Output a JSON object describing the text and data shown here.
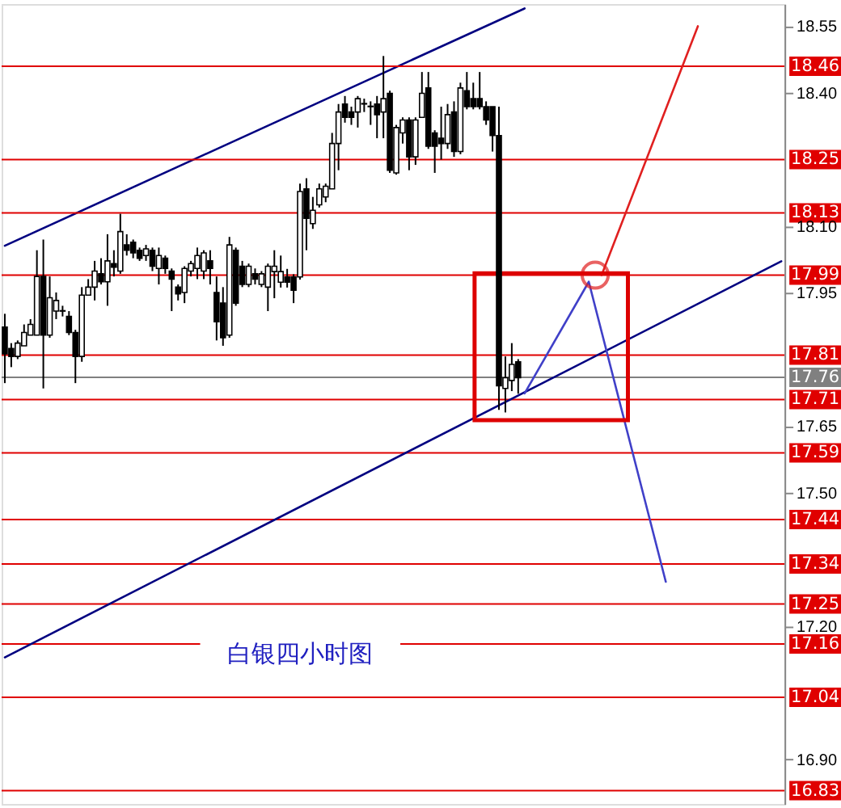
{
  "chart_data": {
    "type": "candlestick",
    "annotations": [
      "白银四小时图"
    ],
    "categories": [
      null,
      null,
      null,
      null,
      null,
      null,
      null,
      null,
      null,
      null,
      null,
      null,
      null,
      null,
      null,
      null,
      null,
      null,
      null,
      null,
      null,
      null,
      null,
      null,
      null,
      null,
      null,
      null,
      null,
      null,
      null,
      null,
      null,
      null,
      null,
      null,
      null,
      null,
      null,
      null,
      null,
      null,
      null,
      null,
      null,
      null,
      null,
      null,
      null,
      null,
      null,
      null,
      null,
      null,
      null,
      null,
      null,
      null,
      null,
      null,
      null,
      null,
      null,
      null,
      null,
      null,
      null,
      null,
      null,
      null,
      null,
      null,
      null,
      null,
      null,
      null,
      null,
      null,
      null,
      null,
      null,
      null,
      null,
      null,
      null,
      null,
      null,
      null,
      null,
      null,
      null,
      null,
      null,
      null,
      null,
      null,
      null,
      null,
      null,
      null,
      null,
      null,
      null,
      null,
      null,
      null,
      null,
      null,
      null,
      null,
      null,
      null,
      null,
      null,
      null,
      null,
      null,
      null,
      null,
      null,
      null,
      null
    ],
    "ohlc": [
      [
        17.873,
        17.903,
        17.747,
        17.813
      ],
      [
        17.825,
        17.837,
        17.783,
        17.807
      ],
      [
        17.807,
        17.843,
        17.801,
        17.837
      ],
      [
        17.831,
        17.879,
        17.831,
        17.861
      ],
      [
        17.855,
        17.891,
        17.855,
        17.879
      ],
      [
        17.855,
        18.046,
        17.855,
        17.987
      ],
      [
        17.987,
        18.07,
        17.735,
        17.855
      ],
      [
        17.855,
        17.987,
        17.849,
        17.939
      ],
      [
        17.909,
        17.951,
        17.891,
        17.933
      ],
      [
        17.909,
        17.921,
        17.897,
        17.91
      ],
      [
        17.897,
        17.909,
        17.855,
        17.861
      ],
      [
        17.861,
        17.867,
        17.747,
        17.807
      ],
      [
        17.807,
        17.963,
        17.795,
        17.945
      ],
      [
        17.945,
        17.981,
        17.945,
        17.963
      ],
      [
        17.963,
        18.022,
        17.933,
        17.999
      ],
      [
        17.993,
        18.028,
        17.969,
        17.975
      ],
      [
        17.975,
        18.082,
        17.921,
        18.022
      ],
      [
        18.016,
        18.046,
        17.987,
        18.008
      ],
      [
        17.999,
        18.128,
        17.993,
        18.088
      ],
      [
        18.058,
        18.082,
        18.034,
        18.046
      ],
      [
        18.064,
        18.07,
        18.028,
        18.04
      ],
      [
        18.046,
        18.052,
        18.022,
        18.028
      ],
      [
        18.034,
        18.058,
        18.022,
        18.049
      ],
      [
        18.046,
        18.052,
        17.999,
        18.01
      ],
      [
        18.005,
        18.052,
        17.969,
        18.034
      ],
      [
        18.028,
        18.034,
        17.993,
        18.005
      ],
      [
        17.999,
        18.005,
        17.909,
        17.981
      ],
      [
        17.963,
        17.969,
        17.933,
        17.948
      ],
      [
        17.951,
        18.01,
        17.927,
        18.005
      ],
      [
        17.999,
        18.022,
        17.987,
        18.016
      ],
      [
        18.005,
        18.052,
        17.981,
        18.034
      ],
      [
        17.999,
        18.046,
        17.981,
        18.04
      ],
      [
        18.022,
        18.046,
        17.969,
        18.005
      ],
      [
        17.951,
        17.987,
        17.843,
        17.885
      ],
      [
        17.927,
        17.963,
        17.831,
        17.849
      ],
      [
        17.855,
        18.076,
        17.849,
        18.058
      ],
      [
        18.046,
        18.052,
        17.921,
        17.927
      ],
      [
        18.01,
        18.022,
        17.963,
        17.969
      ],
      [
        17.969,
        18.016,
        17.963,
        18.01
      ],
      [
        17.993,
        18.005,
        17.969,
        17.981
      ],
      [
        17.969,
        17.999,
        17.963,
        17.993
      ],
      [
        17.963,
        18.016,
        17.909,
        18.01
      ],
      [
        17.998,
        18.046,
        17.938,
        18.01
      ],
      [
        17.974,
        18.034,
        17.962,
        17.998
      ],
      [
        17.986,
        18.004,
        17.962,
        17.974
      ],
      [
        17.986,
        17.992,
        17.927,
        17.956
      ],
      [
        17.986,
        18.196,
        17.98,
        18.178
      ],
      [
        18.184,
        18.208,
        18.046,
        18.118
      ],
      [
        18.106,
        18.166,
        18.094,
        18.136
      ],
      [
        18.148,
        18.196,
        18.142,
        18.184
      ],
      [
        18.166,
        18.196,
        18.154,
        18.19
      ],
      [
        18.184,
        18.31,
        18.184,
        18.286
      ],
      [
        18.286,
        18.375,
        18.226,
        18.357
      ],
      [
        18.375,
        18.393,
        18.333,
        18.345
      ],
      [
        18.357,
        18.369,
        18.328,
        18.345
      ],
      [
        18.357,
        18.393,
        18.322,
        18.387
      ],
      [
        18.375,
        18.387,
        18.357,
        18.376
      ],
      [
        18.369,
        18.381,
        18.328,
        18.37
      ],
      [
        18.375,
        18.393,
        18.298,
        18.351
      ],
      [
        18.357,
        18.483,
        18.298,
        18.387
      ],
      [
        18.399,
        18.405,
        18.22,
        18.226
      ],
      [
        18.22,
        18.328,
        18.216,
        18.322
      ],
      [
        18.31,
        18.345,
        18.286,
        18.339
      ],
      [
        18.339,
        18.345,
        18.226,
        18.256
      ],
      [
        18.256,
        18.345,
        18.238,
        18.339
      ],
      [
        18.345,
        18.447,
        18.345,
        18.399
      ],
      [
        18.411,
        18.447,
        18.274,
        18.28
      ],
      [
        18.31,
        18.316,
        18.22,
        18.28
      ],
      [
        18.298,
        18.369,
        18.25,
        18.286
      ],
      [
        18.286,
        18.375,
        18.274,
        18.351
      ],
      [
        18.357,
        18.381,
        18.256,
        18.268
      ],
      [
        18.268,
        18.423,
        18.262,
        18.411
      ],
      [
        18.405,
        18.447,
        18.363,
        18.369
      ],
      [
        18.387,
        18.423,
        18.363,
        18.369
      ],
      [
        18.387,
        18.447,
        18.363,
        18.369
      ],
      [
        18.369,
        18.381,
        18.328,
        18.339
      ],
      [
        18.369,
        18.369,
        18.268,
        18.304
      ],
      [
        18.304,
        18.369,
        17.687,
        17.741
      ],
      [
        17.735,
        17.807,
        17.681,
        17.759
      ],
      [
        17.753,
        17.837,
        17.729,
        17.789
      ],
      [
        17.795,
        17.801,
        17.723,
        17.759
      ],
      null,
      null,
      null,
      null,
      null,
      null,
      null,
      null,
      null,
      null,
      null,
      null,
      null,
      null,
      null,
      null,
      null,
      null,
      null,
      null,
      null,
      null,
      null,
      null,
      null,
      null,
      null,
      null,
      null,
      null,
      null,
      null,
      null,
      null,
      null,
      null,
      null,
      null,
      null,
      null,
      null
    ],
    "series": [
      {
        "type": "line",
        "color": "#000080",
        "values": [
          18.056,
          null,
          null,
          null,
          null,
          null,
          null,
          null,
          null,
          null,
          null,
          null,
          null,
          null,
          null,
          null,
          null,
          null,
          null,
          null,
          null,
          null,
          null,
          null,
          null,
          null,
          null,
          null,
          null,
          null,
          null,
          null,
          null,
          null,
          null,
          null,
          null,
          null,
          null,
          null,
          null,
          null,
          null,
          null,
          null,
          null,
          null,
          null,
          null,
          null,
          null,
          null,
          null,
          null,
          null,
          null,
          null,
          null,
          null,
          null,
          null,
          null,
          null,
          null,
          null,
          null,
          null,
          null,
          null,
          null,
          null,
          null,
          null,
          null,
          null,
          null,
          null,
          null,
          null,
          null,
          null,
          18.59,
          null,
          null,
          null,
          null,
          null,
          null,
          null,
          null,
          null,
          null,
          null,
          null,
          null,
          null,
          null,
          null,
          null,
          null,
          null,
          null,
          null,
          null,
          null,
          null,
          null,
          null,
          null,
          null,
          null,
          null,
          null,
          null,
          null,
          null,
          null,
          null,
          null,
          null,
          null,
          null
        ]
      },
      {
        "type": "line",
        "color": "#000080",
        "values": [
          17.13,
          null,
          null,
          null,
          null,
          null,
          null,
          null,
          null,
          null,
          null,
          null,
          null,
          null,
          null,
          null,
          null,
          null,
          null,
          null,
          null,
          null,
          null,
          null,
          null,
          null,
          null,
          null,
          null,
          null,
          null,
          null,
          null,
          null,
          null,
          null,
          null,
          null,
          null,
          null,
          null,
          null,
          null,
          null,
          null,
          null,
          null,
          null,
          null,
          null,
          null,
          null,
          null,
          null,
          null,
          null,
          null,
          null,
          null,
          null,
          null,
          null,
          null,
          null,
          null,
          null,
          null,
          null,
          null,
          null,
          null,
          null,
          null,
          null,
          null,
          null,
          null,
          null,
          null,
          null,
          null,
          null,
          null,
          null,
          null,
          null,
          null,
          null,
          null,
          null,
          null,
          null,
          null,
          null,
          null,
          null,
          null,
          null,
          null,
          null,
          null,
          null,
          null,
          null,
          null,
          null,
          null,
          null,
          null,
          null,
          null,
          null,
          null,
          null,
          null,
          null,
          null,
          null,
          null,
          null,
          null,
          18.021
        ]
      },
      {
        "type": "line",
        "color": "#4040c8",
        "values": [
          null,
          null,
          null,
          null,
          null,
          null,
          null,
          null,
          null,
          null,
          null,
          null,
          null,
          null,
          null,
          null,
          null,
          null,
          null,
          null,
          null,
          null,
          null,
          null,
          null,
          null,
          null,
          null,
          null,
          null,
          null,
          null,
          null,
          null,
          null,
          null,
          null,
          null,
          null,
          null,
          null,
          null,
          null,
          null,
          null,
          null,
          null,
          null,
          null,
          null,
          null,
          null,
          null,
          null,
          null,
          null,
          null,
          null,
          null,
          null,
          null,
          null,
          null,
          null,
          null,
          null,
          null,
          null,
          null,
          null,
          null,
          null,
          null,
          null,
          null,
          null,
          null,
          null,
          null,
          null,
          null,
          17.724,
          null,
          null,
          null,
          null,
          null,
          null,
          null,
          null,
          null,
          17.975,
          null,
          null,
          null,
          null,
          null,
          null,
          null,
          null,
          null,
          null,
          null,
          17.3,
          null,
          null,
          null,
          null,
          null,
          null,
          null,
          null,
          null,
          null,
          null,
          null,
          null,
          null,
          null,
          null,
          null,
          null
        ]
      },
      {
        "type": "line",
        "color": "#e02020",
        "values": [
          null,
          null,
          null,
          null,
          null,
          null,
          null,
          null,
          null,
          null,
          null,
          null,
          null,
          null,
          null,
          null,
          null,
          null,
          null,
          null,
          null,
          null,
          null,
          null,
          null,
          null,
          null,
          null,
          null,
          null,
          null,
          null,
          null,
          null,
          null,
          null,
          null,
          null,
          null,
          null,
          null,
          null,
          null,
          null,
          null,
          null,
          null,
          null,
          null,
          null,
          null,
          null,
          null,
          null,
          null,
          null,
          null,
          null,
          null,
          null,
          null,
          null,
          null,
          null,
          null,
          null,
          null,
          null,
          null,
          null,
          null,
          null,
          null,
          null,
          null,
          null,
          null,
          null,
          null,
          null,
          null,
          null,
          null,
          null,
          null,
          null,
          null,
          null,
          null,
          null,
          null,
          null,
          null,
          17.99,
          null,
          null,
          null,
          null,
          null,
          null,
          null,
          null,
          null,
          null,
          null,
          null,
          null,
          null,
          18.55,
          null,
          null,
          null,
          null,
          null,
          null,
          null,
          null,
          null,
          null,
          null,
          null,
          null
        ]
      },
      {
        "type": "scatter",
        "color": "#e02020",
        "marker": "circle",
        "values": [
          null,
          null,
          null,
          null,
          null,
          null,
          null,
          null,
          null,
          null,
          null,
          null,
          null,
          null,
          null,
          null,
          null,
          null,
          null,
          null,
          null,
          null,
          null,
          null,
          null,
          null,
          null,
          null,
          null,
          null,
          null,
          null,
          null,
          null,
          null,
          null,
          null,
          null,
          null,
          null,
          null,
          null,
          null,
          null,
          null,
          null,
          null,
          null,
          null,
          null,
          null,
          null,
          null,
          null,
          null,
          null,
          null,
          null,
          null,
          null,
          null,
          null,
          null,
          null,
          null,
          null,
          null,
          null,
          null,
          null,
          null,
          null,
          null,
          null,
          null,
          null,
          null,
          null,
          null,
          null,
          null,
          null,
          null,
          null,
          null,
          null,
          null,
          null,
          null,
          null,
          null,
          null,
          17.99,
          null,
          null,
          null,
          null,
          null,
          null,
          null,
          null,
          null,
          null,
          null,
          null,
          null,
          null,
          null,
          null,
          null,
          null,
          null,
          null,
          null,
          null,
          null,
          null,
          null,
          null,
          null,
          null,
          null
        ]
      }
    ],
    "ylim": [
      16.8,
      18.6
    ],
    "yticks": [
      18.55,
      {
        "value": 18.4,
        "label": "18.40"
      },
      {
        "value": 18.1,
        "label": "18.10"
      },
      17.95,
      17.65,
      {
        "value": 17.5,
        "label": "17.50"
      },
      {
        "value": 17.2,
        "label": "17.20"
      },
      {
        "value": 16.9,
        "label": "16.90"
      }
    ],
    "ref_lines": [
      {
        "axis": "y",
        "value": 18.46,
        "label": "18.46",
        "color": "#e00000"
      },
      {
        "axis": "y",
        "value": 18.25,
        "label": "18.25",
        "color": "#e00000"
      },
      {
        "axis": "y",
        "value": 18.13,
        "label": "18.13",
        "color": "#e00000"
      },
      {
        "axis": "y",
        "value": 17.99,
        "label": "17.99",
        "color": "#e00000"
      },
      {
        "axis": "y",
        "value": 17.81,
        "label": "17.81",
        "color": "#e00000"
      },
      {
        "axis": "y",
        "value": 17.76,
        "label": "17.76",
        "color": "#808080"
      },
      {
        "axis": "y",
        "value": 17.71,
        "label": "17.71",
        "color": "#e00000"
      },
      {
        "axis": "y",
        "value": 17.59,
        "label": "17.59",
        "color": "#e00000"
      },
      {
        "axis": "y",
        "value": 17.44,
        "label": "17.44",
        "color": "#e00000"
      },
      {
        "axis": "y",
        "value": 17.34,
        "label": "17.34",
        "color": "#e00000"
      },
      {
        "axis": "y",
        "value": 17.25,
        "label": "17.25",
        "color": "#e00000"
      },
      {
        "axis": "y",
        "value": 17.16,
        "label": "17.16",
        "color": "#e00000"
      },
      {
        "axis": "y",
        "value": 17.04,
        "label": "17.04",
        "color": "#e00000"
      },
      {
        "axis": "y",
        "value": 16.83,
        "label": "16.83",
        "color": "#e00000"
      }
    ],
    "tick_labels": "y",
    "grid": false
  }
}
